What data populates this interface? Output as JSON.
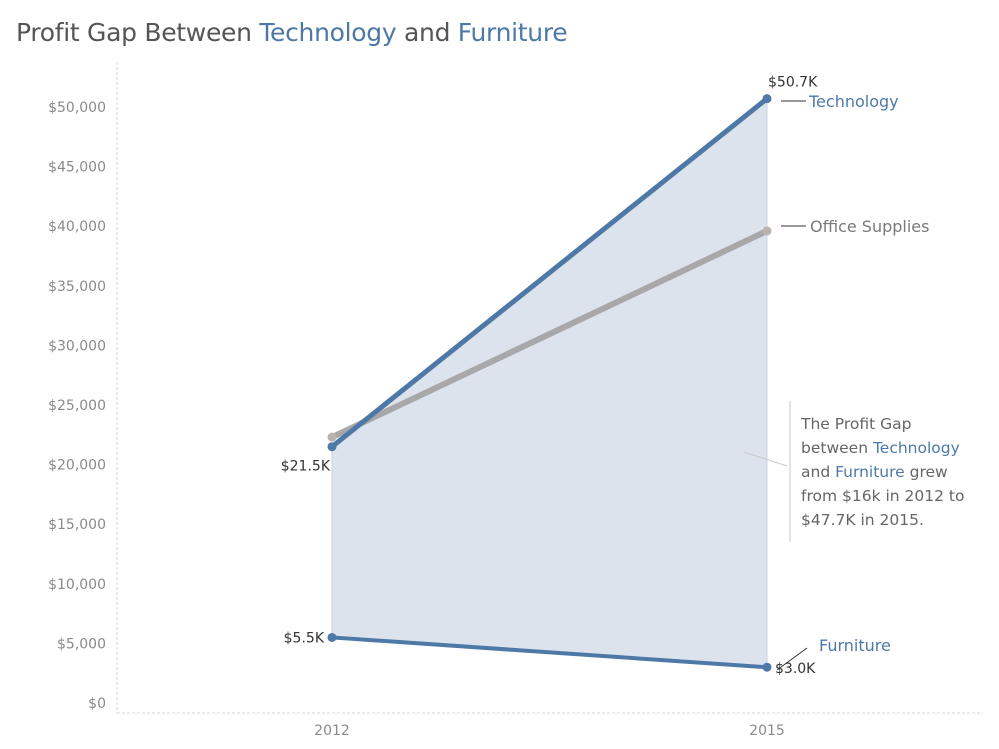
{
  "title": {
    "prefix": "Profit Gap Between ",
    "highlight_1": "Technology",
    "middle": " and ",
    "highlight_2": "Furniture"
  },
  "annotation": {
    "part_1": "The Profit Gap between ",
    "highlight_1": "Technology",
    "part_2": " and ",
    "highlight_2": "Furniture",
    "part_3": " grew from $16k in 2012 to $47.7K in 2015."
  },
  "colors": {
    "technology": "#4e79a7",
    "furniture": "#4e79a7",
    "office_supplies": "#a8a8ab",
    "gap_fill": "#dce3ed",
    "axis_text": "#8a8a8a"
  },
  "chart_data": {
    "type": "line",
    "x": [
      "2012",
      "2015"
    ],
    "ylim": [
      0,
      55000
    ],
    "yticks": [
      0,
      5000,
      10000,
      15000,
      20000,
      25000,
      30000,
      35000,
      40000,
      45000,
      50000
    ],
    "ytick_labels": [
      "$0",
      "$5,000",
      "$10,000",
      "$15,000",
      "$20,000",
      "$25,000",
      "$30,000",
      "$35,000",
      "$40,000",
      "$45,000",
      "$50,000"
    ],
    "grid": false,
    "shaded_gap": [
      "Technology",
      "Furniture"
    ],
    "series": [
      {
        "name": "Office Supplies",
        "values": [
          22300,
          39600
        ],
        "color": "#a8a8ab",
        "point_labels": [
          "",
          ""
        ]
      },
      {
        "name": "Technology",
        "values": [
          21500,
          50700
        ],
        "color": "#4e79a7",
        "point_labels": [
          "$21.5K",
          "$50.7K"
        ]
      },
      {
        "name": "Furniture",
        "values": [
          5500,
          3000
        ],
        "color": "#4e79a7",
        "point_labels": [
          "$5.5K",
          "$3.0K"
        ]
      }
    ]
  }
}
